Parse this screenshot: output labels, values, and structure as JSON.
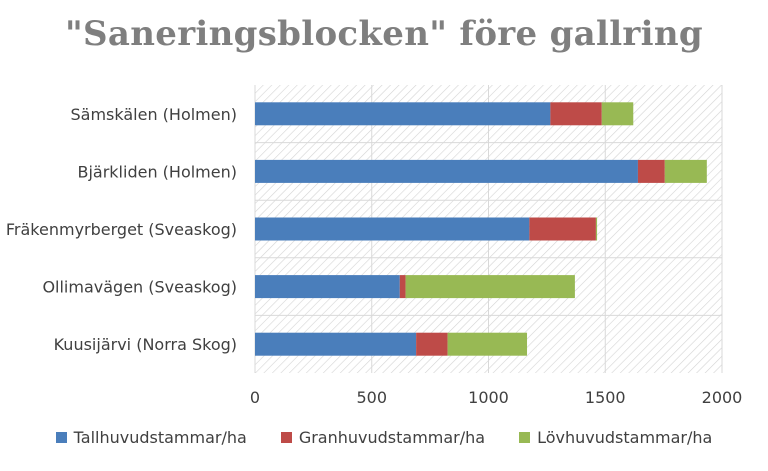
{
  "chart_data": {
    "type": "bar",
    "orientation": "horizontal",
    "stacked": true,
    "title": "\"Saneringsblocken\" före gallring",
    "categories": [
      "Sämskälen (Holmen)",
      "Bjärkliden (Holmen)",
      "Fräkenmyrberget (Sveaskog)",
      "Ollimavägen (Sveaskog)",
      "Kuusijärvi (Norra Skog)"
    ],
    "series": [
      {
        "name": "Tallhuvudstammar/ha",
        "color": "#4a7ebb",
        "values": [
          1265,
          1640,
          1175,
          620,
          690
        ]
      },
      {
        "name": "Granhuvudstammar/ha",
        "color": "#be4b48",
        "values": [
          220,
          115,
          285,
          25,
          135
        ]
      },
      {
        "name": "Lövhuvudstammar/ha",
        "color": "#98b954",
        "values": [
          135,
          180,
          5,
          725,
          340
        ]
      }
    ],
    "xlim": [
      0,
      2000
    ],
    "xticks": [
      "0",
      "500",
      "1000",
      "1500",
      "2000"
    ],
    "grid": true,
    "plot_background": "hatched",
    "legend_position": "bottom"
  }
}
